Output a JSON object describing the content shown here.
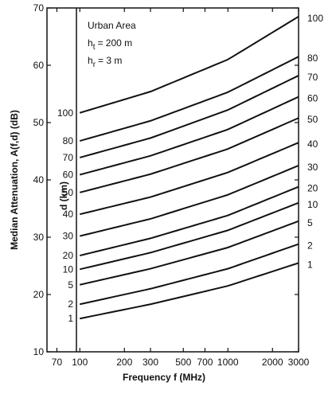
{
  "chart_data": {
    "type": "line",
    "title": "",
    "xlabel": "Frequency  f  (MHz)",
    "ylabel": "Median Attenuation, A(f,d) (dB)",
    "x_scale": "log",
    "xlim": [
      60,
      3000
    ],
    "ylim": [
      10,
      70
    ],
    "grid": false,
    "x_ticks": [
      70,
      100,
      200,
      300,
      500,
      700,
      1000,
      2000,
      3000
    ],
    "x_tick_labels": [
      "70",
      "100",
      "200",
      "300",
      "500",
      "700",
      "1000",
      "2000",
      "3000"
    ],
    "y_ticks": [
      10,
      20,
      30,
      40,
      50,
      60,
      70
    ],
    "y_tick_labels": [
      "10",
      "20",
      "30",
      "40",
      "50",
      "60",
      "70"
    ],
    "annotations": {
      "area": "Urban Area",
      "ht_symbol": "h",
      "ht_sub": "t",
      "ht_value": "=  200  m",
      "hr_symbol": "h",
      "hr_sub": "r",
      "hr_value": "=  3  m",
      "distance_axis_label": "d  (km)"
    },
    "series": [
      {
        "left_label": "1",
        "right_label": "1",
        "values": [
          {
            "x": 100,
            "y": 15.8
          },
          {
            "x": 300,
            "y": 18.3
          },
          {
            "x": 1000,
            "y": 21.5
          },
          {
            "x": 3000,
            "y": 25.5
          }
        ]
      },
      {
        "left_label": "2",
        "right_label": "2",
        "values": [
          {
            "x": 100,
            "y": 18.3
          },
          {
            "x": 300,
            "y": 21.0
          },
          {
            "x": 1000,
            "y": 24.5
          },
          {
            "x": 3000,
            "y": 28.8
          }
        ]
      },
      {
        "left_label": "5",
        "right_label": "5",
        "values": [
          {
            "x": 100,
            "y": 21.7
          },
          {
            "x": 300,
            "y": 24.5
          },
          {
            "x": 1000,
            "y": 28.2
          },
          {
            "x": 3000,
            "y": 32.8
          }
        ]
      },
      {
        "left_label": "10",
        "right_label": "10",
        "values": [
          {
            "x": 100,
            "y": 24.4
          },
          {
            "x": 300,
            "y": 27.3
          },
          {
            "x": 1000,
            "y": 31.2
          },
          {
            "x": 3000,
            "y": 36.0
          }
        ]
      },
      {
        "left_label": "20",
        "right_label": "20",
        "values": [
          {
            "x": 100,
            "y": 26.8
          },
          {
            "x": 300,
            "y": 29.8
          },
          {
            "x": 1000,
            "y": 33.8
          },
          {
            "x": 3000,
            "y": 38.8
          }
        ]
      },
      {
        "left_label": "30",
        "right_label": "30",
        "values": [
          {
            "x": 100,
            "y": 30.2
          },
          {
            "x": 300,
            "y": 33.2
          },
          {
            "x": 1000,
            "y": 37.4
          },
          {
            "x": 3000,
            "y": 42.5
          }
        ]
      },
      {
        "left_label": "40",
        "right_label": "40",
        "values": [
          {
            "x": 100,
            "y": 34.0
          },
          {
            "x": 300,
            "y": 37.0
          },
          {
            "x": 1000,
            "y": 41.3
          },
          {
            "x": 3000,
            "y": 46.5
          }
        ]
      },
      {
        "left_label": "50",
        "right_label": "50",
        "values": [
          {
            "x": 100,
            "y": 37.8
          },
          {
            "x": 300,
            "y": 41.0
          },
          {
            "x": 1000,
            "y": 45.4
          },
          {
            "x": 3000,
            "y": 50.8
          }
        ]
      },
      {
        "left_label": "60",
        "right_label": "60",
        "values": [
          {
            "x": 100,
            "y": 40.9
          },
          {
            "x": 300,
            "y": 44.2
          },
          {
            "x": 1000,
            "y": 48.8
          },
          {
            "x": 3000,
            "y": 54.5
          }
        ]
      },
      {
        "left_label": "70",
        "right_label": "70",
        "values": [
          {
            "x": 100,
            "y": 43.9
          },
          {
            "x": 300,
            "y": 47.3
          },
          {
            "x": 1000,
            "y": 52.2
          },
          {
            "x": 3000,
            "y": 58.2
          }
        ]
      },
      {
        "left_label": "80",
        "right_label": "80",
        "values": [
          {
            "x": 100,
            "y": 46.8
          },
          {
            "x": 300,
            "y": 50.3
          },
          {
            "x": 1000,
            "y": 55.3
          },
          {
            "x": 3000,
            "y": 61.5
          }
        ]
      },
      {
        "left_label": "100",
        "right_label": "100",
        "values": [
          {
            "x": 100,
            "y": 51.7
          },
          {
            "x": 300,
            "y": 55.4
          },
          {
            "x": 1000,
            "y": 61.0
          },
          {
            "x": 3000,
            "y": 68.5
          }
        ]
      }
    ]
  }
}
